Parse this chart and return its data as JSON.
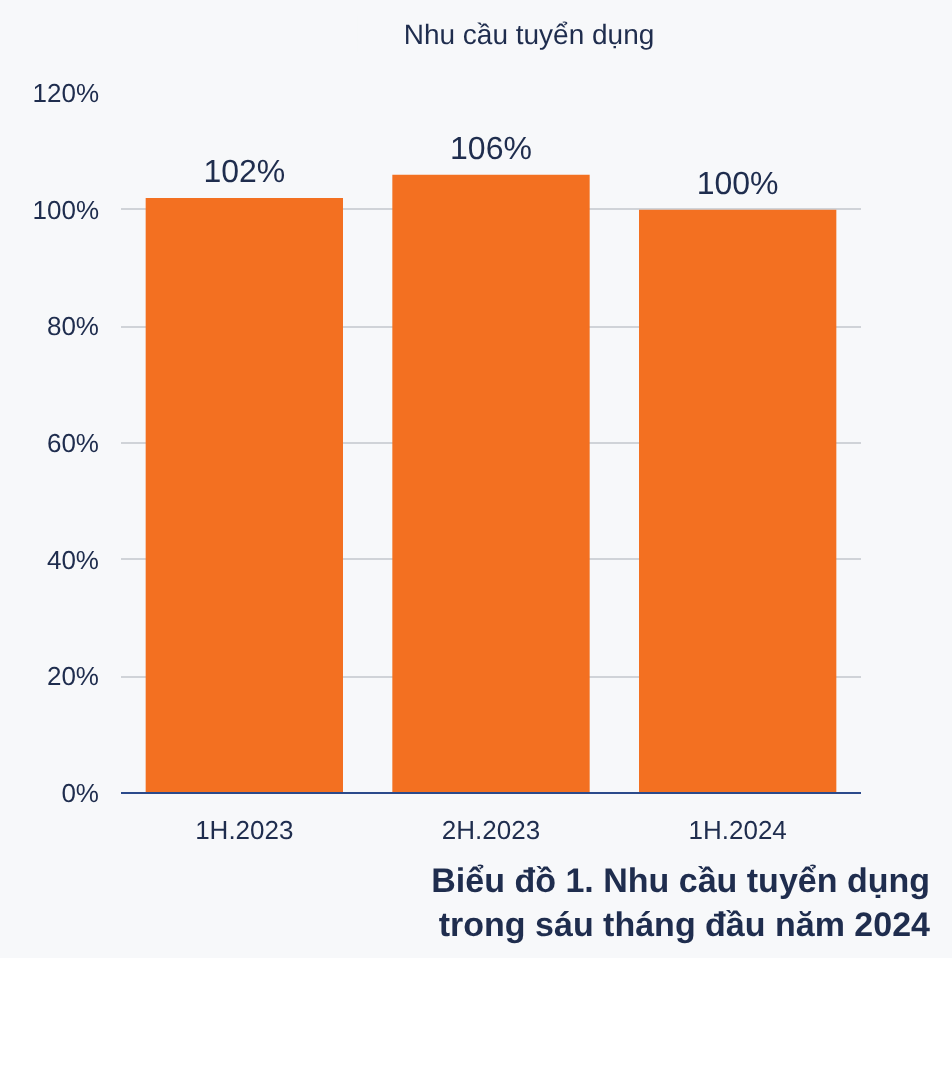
{
  "chart_data": {
    "type": "bar",
    "title": "Biểu đồ 1. Nhu cầu tuyển dụng\ntrong sáu tháng đầu năm 2024",
    "categories": [
      "1H.2023",
      "2H.2023",
      "1H.2024"
    ],
    "series": [
      {
        "name": "Nhu cầu tuyển dụng",
        "color": "#f37021",
        "values": [
          102,
          106,
          100
        ],
        "value_labels": [
          "102%",
          "106%",
          "100%"
        ]
      }
    ],
    "ylim": [
      0,
      120
    ],
    "yticks": [
      {
        "value": 0,
        "label": "0%"
      },
      {
        "value": 20,
        "label": "20%"
      },
      {
        "value": 40,
        "label": "40%"
      },
      {
        "value": 60,
        "label": "60%"
      },
      {
        "value": 80,
        "label": "80%"
      },
      {
        "value": 100,
        "label": "100%"
      },
      {
        "value": 120,
        "label": "120%"
      }
    ],
    "grid": "y",
    "legend": "top"
  }
}
